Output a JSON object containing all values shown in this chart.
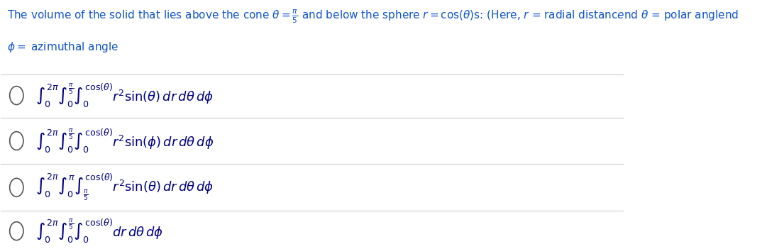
{
  "bg_color": "#ffffff",
  "title_color": "#1155CC",
  "math_color": "#000080",
  "line_color": "#cccccc",
  "circle_color": "#555555",
  "figsize": [
    10.81,
    3.51
  ],
  "dpi": 100,
  "options": [
    "$\\int_0^{2\\pi} \\int_0^{\\frac{\\pi}{5}} \\int_0^{\\cos(\\theta)} r^2 \\sin(\\theta)\\, dr\\, d\\theta\\, d\\phi$",
    "$\\int_0^{2\\pi} \\int_0^{\\frac{\\pi}{5}} \\int_0^{\\cos(\\theta)} r^2 \\sin(\\phi)\\, dr\\, d\\theta\\, d\\phi$",
    "$\\int_0^{2\\pi} \\int_0^{\\pi} \\int_{\\frac{\\pi}{5}}^{\\cos(\\theta)} r^2 \\sin(\\theta)\\, dr\\, d\\theta\\, d\\phi$",
    "$\\int_0^{2\\pi} \\int_0^{\\frac{\\pi}{5}} \\int_0^{\\cos(\\theta)} dr\\, d\\theta\\, d\\phi$"
  ],
  "title_line1": "The volume of the solid that lies above the cone $\\theta = \\frac{\\pi}{5}$ and below the sphere $r = \\cos(\\theta)$s: (Here, $r$ = radial distanc$e$nd $\\theta$ = polar angle$e$nd",
  "title_line2": "$\\phi =$ azimuthal angle"
}
